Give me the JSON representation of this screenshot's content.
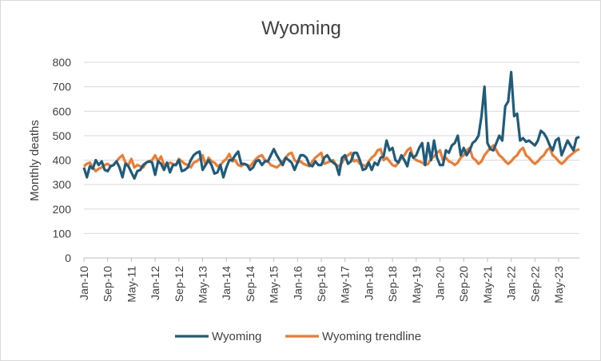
{
  "chart_data": {
    "type": "line",
    "title": "Wyoming",
    "xlabel": "",
    "ylabel": "Monthly deaths",
    "ylim": [
      0,
      800
    ],
    "yticks": [
      "0",
      "100",
      "200",
      "300",
      "400",
      "500",
      "600",
      "700",
      "800"
    ],
    "xticks": [
      "Jan-10",
      "Sep-10",
      "May-11",
      "Jan-12",
      "Sep-12",
      "May-13",
      "Jan-14",
      "Sep-14",
      "May-15",
      "Jan-16",
      "Sep-16",
      "May-17",
      "Jan-18",
      "Sep-18",
      "May-19",
      "Jan-20",
      "Sep-20",
      "May-21",
      "Jan-22",
      "Sep-22",
      "May-23"
    ],
    "x_start": "Jan-10",
    "grid": "horizontal",
    "legend": "bottom",
    "series": [
      {
        "name": "Wyoming",
        "color": "#1f5b7a",
        "values": [
          370,
          330,
          375,
          365,
          400,
          380,
          395,
          360,
          355,
          375,
          380,
          395,
          370,
          330,
          385,
          375,
          350,
          325,
          355,
          360,
          380,
          390,
          395,
          390,
          340,
          395,
          385,
          360,
          390,
          350,
          380,
          380,
          400,
          355,
          360,
          370,
          400,
          420,
          430,
          435,
          360,
          380,
          400,
          380,
          345,
          350,
          380,
          330,
          370,
          400,
          400,
          420,
          435,
          385,
          385,
          380,
          360,
          370,
          395,
          400,
          380,
          395,
          395,
          420,
          445,
          420,
          400,
          380,
          410,
          400,
          390,
          360,
          390,
          420,
          420,
          410,
          380,
          375,
          395,
          380,
          380,
          410,
          420,
          400,
          390,
          380,
          340,
          410,
          420,
          385,
          395,
          430,
          430,
          400,
          360,
          365,
          390,
          360,
          390,
          380,
          410,
          415,
          480,
          440,
          450,
          400,
          390,
          420,
          400,
          375,
          430,
          410,
          420,
          450,
          470,
          380,
          470,
          400,
          480,
          410,
          380,
          380,
          440,
          430,
          460,
          470,
          500,
          420,
          450,
          420,
          440,
          470,
          480,
          500,
          580,
          700,
          470,
          445,
          440,
          470,
          500,
          480,
          620,
          640,
          760,
          580,
          590,
          480,
          490,
          475,
          480,
          470,
          460,
          480,
          520,
          510,
          490,
          460,
          440,
          480,
          490,
          420,
          450,
          480,
          460,
          440,
          490,
          495
        ]
      },
      {
        "name": "Wyoming trendline",
        "color": "#ee7b30",
        "values": [
          375,
          385,
          390,
          370,
          355,
          365,
          370,
          380,
          385,
          375,
          380,
          395,
          410,
          420,
          390,
          380,
          405,
          370,
          380,
          375,
          370,
          390,
          395,
          400,
          420,
          395,
          415,
          380,
          380,
          390,
          385,
          380,
          405,
          395,
          385,
          380,
          370,
          390,
          395,
          405,
          420,
          380,
          410,
          395,
          390,
          375,
          380,
          395,
          405,
          425,
          395,
          400,
          380,
          375,
          385,
          380,
          375,
          390,
          405,
          415,
          420,
          400,
          395,
          380,
          375,
          370,
          380,
          395,
          410,
          425,
          430,
          400,
          390,
          395,
          385,
          380,
          375,
          395,
          410,
          420,
          430,
          385,
          390,
          395,
          400,
          380,
          375,
          390,
          410,
          420,
          430,
          395,
          400,
          385,
          380,
          375,
          395,
          410,
          420,
          440,
          445,
          400,
          410,
          395,
          380,
          375,
          390,
          410,
          420,
          440,
          450,
          410,
          400,
          395,
          390,
          380,
          385,
          405,
          415,
          430,
          440,
          400,
          410,
          395,
          390,
          380,
          390,
          410,
          420,
          440,
          450,
          410,
          400,
          385,
          395,
          420,
          435,
          450,
          460,
          440,
          420,
          410,
          395,
          385,
          395,
          410,
          420,
          440,
          450,
          420,
          410,
          395,
          385,
          395,
          410,
          420,
          440,
          450,
          420,
          410,
          395,
          385,
          395,
          410,
          420,
          430,
          440,
          445
        ]
      }
    ]
  }
}
